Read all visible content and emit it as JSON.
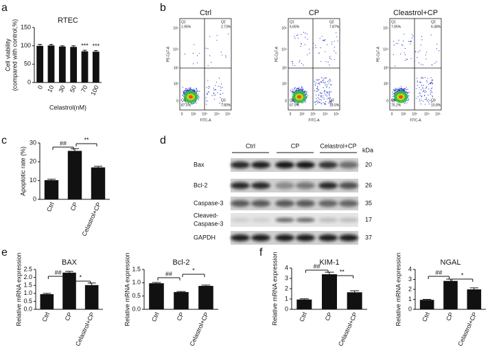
{
  "panel_letters": [
    "a",
    "b",
    "c",
    "d",
    "e",
    "f"
  ],
  "chart_data": [
    {
      "type": "bar",
      "title": "RTEC",
      "ylabel": [
        "Cell viability",
        "(compared with control,%)"
      ],
      "xlabel": "Celastrol(nM)",
      "categories": [
        "0",
        "10",
        "30",
        "50",
        "70",
        "100"
      ],
      "values": [
        100,
        101,
        98,
        97,
        85,
        84
      ],
      "errors": [
        4,
        3,
        2,
        3,
        3,
        3
      ],
      "annotations": [
        "***",
        "***"
      ],
      "ylim": [
        0,
        150
      ],
      "yticks": [
        0,
        50,
        100,
        150
      ],
      "color": "#111111"
    },
    {
      "type": "bar",
      "ylabel": [
        "Apoptotic rate (%)"
      ],
      "categories": [
        "Ctrl",
        "CP",
        "Celastrol+CP"
      ],
      "values": [
        10.2,
        25.8,
        17
      ],
      "errors": [
        0.5,
        1.2,
        0.6
      ],
      "annotations": [
        "##",
        "**"
      ],
      "ylim": [
        0,
        30
      ],
      "yticks": [
        0,
        10,
        20,
        30
      ],
      "color": "#111111"
    },
    {
      "type": "bar",
      "title": "BAX",
      "ylabel": [
        "Relative mRNA expression"
      ],
      "categories": [
        "Ctrl",
        "CP",
        "Celastrol+CP"
      ],
      "values": [
        0.95,
        2.3,
        1.52
      ],
      "errors": [
        0.05,
        0.08,
        0.13
      ],
      "annotations": [
        "##",
        "*"
      ],
      "ylim": [
        0,
        2.5
      ],
      "yticks": [
        {
          "value": 0,
          "label": "0.0"
        },
        0.5,
        {
          "value": 1,
          "label": "1.0"
        },
        1.5,
        {
          "value": 2,
          "label": "2.0"
        },
        2.5
      ],
      "color": "#111111"
    },
    {
      "type": "bar",
      "title": "Bcl-2",
      "ylabel": [
        "Relative mRNA expression"
      ],
      "categories": [
        "Ctrl",
        "CP",
        "Celastrol+CP"
      ],
      "values": [
        0.98,
        0.65,
        0.88
      ],
      "errors": [
        0.03,
        0.02,
        0.03
      ],
      "annotations": [
        "##",
        "*"
      ],
      "ylim": [
        0,
        1.5
      ],
      "yticks": [
        {
          "value": 0,
          "label": "0.0"
        },
        0.5,
        {
          "value": 1,
          "label": "1.0"
        },
        1.5
      ],
      "color": "#111111"
    },
    {
      "type": "bar",
      "title": "KIM-1",
      "ylabel": [
        "Relative mRNA expression"
      ],
      "categories": [
        "Ctrl",
        "CP",
        "Celastrol+CP"
      ],
      "values": [
        0.95,
        3.4,
        1.65
      ],
      "errors": [
        0.07,
        0.2,
        0.15
      ],
      "annotations": [
        "##",
        "**"
      ],
      "ylim": [
        0,
        4
      ],
      "yticks": [
        0,
        1,
        2,
        3,
        4
      ],
      "color": "#111111"
    },
    {
      "type": "bar",
      "title": "NGAL",
      "ylabel": [
        "Relative mRNA expression"
      ],
      "categories": [
        "Ctrl",
        "CP",
        "Celastrol+CP"
      ],
      "values": [
        0.95,
        2.85,
        2.0
      ],
      "errors": [
        0.05,
        0.18,
        0.15
      ],
      "annotations": [
        "##",
        "*"
      ],
      "ylim": [
        0,
        4
      ],
      "yticks": [
        0,
        1,
        2,
        3,
        4
      ],
      "color": "#111111"
    }
  ],
  "flow": {
    "y_axis_label": "PE-Cy7-A",
    "x_axis_label": "FITC-A",
    "axis_ticks": [
      "0",
      "10²",
      "10³",
      "10⁴",
      "10⁵"
    ],
    "plots": [
      {
        "title": "Ctrl",
        "quadrants": [
          {
            "name": "Q1",
            "value": "1.95%"
          },
          {
            "name": "Q2",
            "value": "2.73%"
          },
          {
            "name": "Q3",
            "value": "7.80%"
          },
          {
            "name": "Q4",
            "value": "87.5%"
          }
        ]
      },
      {
        "title": "CP",
        "quadrants": [
          {
            "name": "Q1",
            "value": "5.65%"
          },
          {
            "name": "Q2",
            "value": "7.87%"
          },
          {
            "name": "Q3",
            "value": "18.5%"
          },
          {
            "name": "Q4",
            "value": "67.9%"
          }
        ]
      },
      {
        "title": "Cleastrol+CP",
        "quadrants": [
          {
            "name": "Q1",
            "value": "7.05%"
          },
          {
            "name": "Q2",
            "value": "6.38%"
          },
          {
            "name": "Q3",
            "value": "10.8%"
          },
          {
            "name": "Q4",
            "value": "75.2%"
          }
        ]
      }
    ]
  },
  "western_blot": {
    "groups": [
      "Ctrl",
      "CP",
      "Celastrol+CP"
    ],
    "unit": "kDa",
    "rows": [
      {
        "label": [
          "Bax"
        ],
        "kda": "20"
      },
      {
        "label": [
          "Bcl-2"
        ],
        "kda": "26"
      },
      {
        "label": [
          "Caspase-3"
        ],
        "kda": "35"
      },
      {
        "label": [
          "Cleaved-",
          "Caspase-3"
        ],
        "kda": "17"
      },
      {
        "label": [
          "GAPDH"
        ],
        "kda": "37"
      }
    ]
  }
}
